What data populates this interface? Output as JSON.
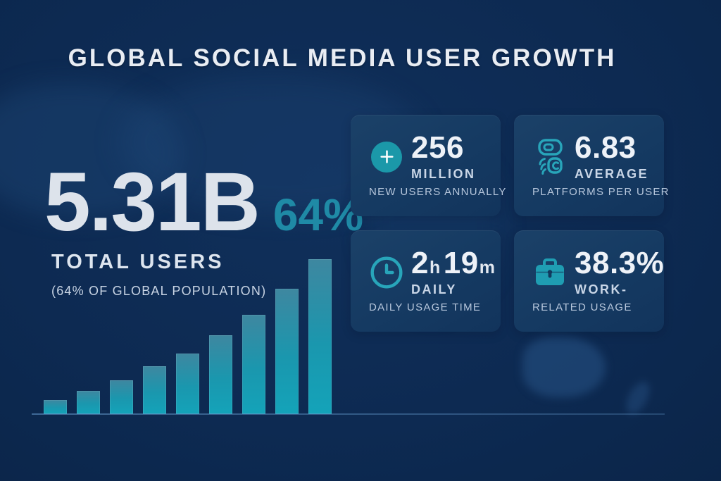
{
  "page": {
    "title": "GLOBAL SOCIAL MEDIA USER GROWTH"
  },
  "hero": {
    "value": "5.31B",
    "pct": "64%",
    "label": "TOTAL USERS",
    "sublabel": "(64% OF GLOBAL POPULATION)"
  },
  "cards": [
    {
      "icon": "plus-icon",
      "value": "256",
      "label": "MILLION",
      "sublabel": "NEW USERS ANNUALLY"
    },
    {
      "icon": "platforms-icon",
      "value": "6.83",
      "label": "AVERAGE",
      "sublabel": "PLATFORMS PER USER"
    },
    {
      "icon": "clock-icon",
      "value_num1": "2",
      "value_unit1": "h",
      "value_num2": "19",
      "value_unit2": "m",
      "label": "DAILY",
      "sublabel": "DAILY USAGE TIME"
    },
    {
      "icon": "briefcase-icon",
      "value": "38.3%",
      "label": "WORK-",
      "sublabel": "RELATED USAGE"
    }
  ],
  "chart_data": {
    "type": "bar",
    "description": "Unlabeled ascending bars illustrating growth of total social media users over time",
    "x": [
      1,
      2,
      3,
      4,
      5,
      6,
      7,
      8,
      9
    ],
    "values": [
      9,
      15,
      22,
      31,
      39,
      51,
      64,
      81,
      100
    ],
    "value_units": "percent of tallest bar (chart has no axis tick labels)",
    "title": "",
    "xlabel": "",
    "ylabel": "",
    "ylim": [
      0,
      100
    ],
    "grid": false,
    "legend": false,
    "bar_gradient_top": "#3e87a0",
    "bar_gradient_bottom": "#14a3b9",
    "baseline_color": "#3c6a94"
  },
  "colors": {
    "background": "#0d2a52",
    "card_background": "#153a62",
    "accent_teal_fill": "#1b98a9",
    "icon_teal_stroke": "#28a5ba",
    "pct_teal": "#1f8aa6",
    "heading_text": "#e9edf3",
    "number_text": "#eef2f8",
    "label_text": "#c9d6e7",
    "sublabel_text": "#b7c7dc"
  }
}
